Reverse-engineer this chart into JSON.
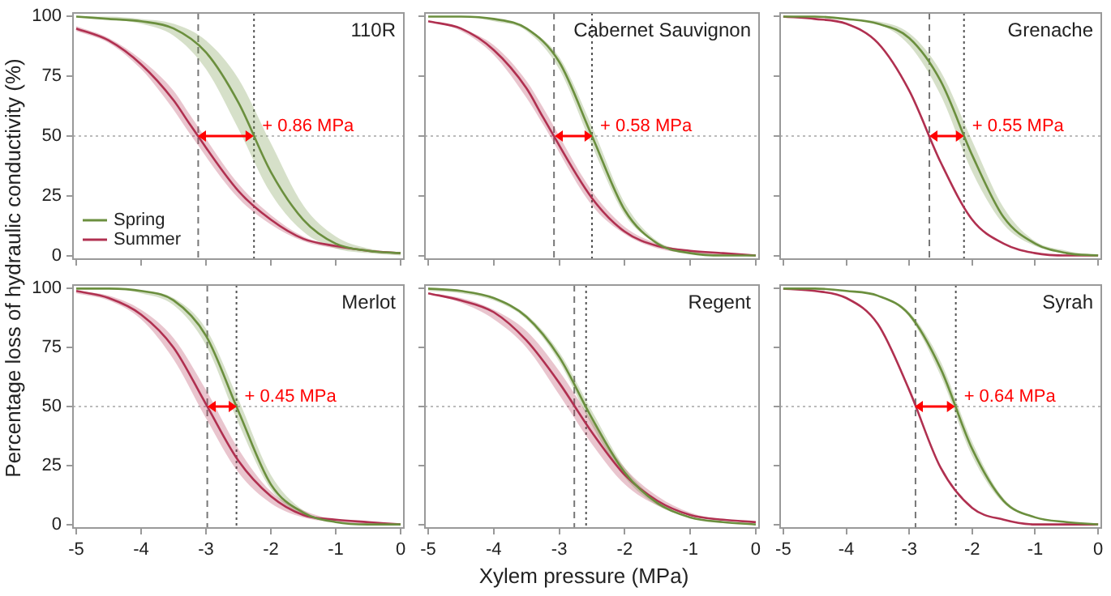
{
  "chart_data": [
    {
      "type": "line",
      "title": "110R",
      "ylabel": "Percentage loss of hydraulic conductivity (%)",
      "x": [
        -5,
        -4.5,
        -4,
        -3.5,
        -3,
        -2.5,
        -2,
        -1.5,
        -1,
        -0.5,
        0
      ],
      "xlim": [
        -5.05,
        0.05
      ],
      "xticks": [
        -5,
        -4,
        -3,
        -2,
        -1,
        0
      ],
      "ylim": [
        -1.5,
        101.5
      ],
      "yticks": [
        0,
        25,
        50,
        75,
        100
      ],
      "tick_labels": "y",
      "legend": "bottom left",
      "series": [
        {
          "name": "Spring",
          "color": "#6b8f3e",
          "values": [
            100,
            99,
            98,
            95,
            85,
            64,
            35,
            15,
            5,
            2,
            1
          ],
          "upper": [
            100,
            100,
            99,
            97,
            90,
            74,
            47,
            21,
            8,
            3,
            1
          ],
          "lower": [
            100,
            99,
            97,
            92,
            78,
            53,
            26,
            10,
            3,
            1,
            0
          ]
        },
        {
          "name": "Summer",
          "color": "#b03050",
          "x": [
            -5,
            -4.5,
            -4,
            -3.5,
            -3.25,
            -2.5,
            -2,
            -1.5,
            -1,
            -0.5,
            0
          ],
          "values": [
            95,
            90,
            80,
            65,
            55,
            27,
            15,
            7,
            4,
            2,
            1
          ],
          "upper": [
            96,
            91,
            82,
            69,
            59,
            30,
            17,
            8,
            4,
            2,
            1
          ],
          "lower": [
            94,
            89,
            78,
            61,
            51,
            24,
            13,
            6,
            3,
            2,
            1
          ]
        }
      ],
      "ref_lines": [
        {
          "axis": "x",
          "value": -3.12,
          "line_style": "dashed",
          "color": "#777777"
        },
        {
          "axis": "x",
          "value": -2.26,
          "line_style": "dotted",
          "color": "#555555"
        },
        {
          "axis": "y",
          "value": 50,
          "line_style": "dotted",
          "color": "#bbbbbb"
        }
      ],
      "annotations": [
        {
          "text": "+ 0.86 MPa",
          "x": -2.26,
          "y": 50
        }
      ]
    },
    {
      "type": "line",
      "title": "Cabernet Sauvignon",
      "x": [
        -5,
        -4.5,
        -4,
        -3.5,
        -3,
        -2.5,
        -2,
        -1.5,
        -1,
        -0.5,
        0
      ],
      "xlim": [
        -5.05,
        0.05
      ],
      "xticks": [
        -5,
        -4,
        -3,
        -2,
        -1,
        0
      ],
      "ylim": [
        -1.5,
        101.5
      ],
      "yticks": [
        0,
        25,
        50,
        75,
        100
      ],
      "tick_labels": false,
      "series": [
        {
          "color": "#6b8f3e",
          "values": [
            100,
            100,
            99,
            95,
            81,
            50,
            19,
            5,
            1,
            0,
            0
          ],
          "upper": [
            100,
            100,
            99,
            95,
            83,
            54,
            22,
            6,
            2,
            0,
            0
          ],
          "lower": [
            100,
            100,
            98,
            94,
            78,
            46,
            17,
            5,
            1,
            0,
            0
          ]
        },
        {
          "color": "#b03050",
          "x": [
            -5,
            -4.5,
            -4,
            -3.5,
            -3.25,
            -2.5,
            -2,
            -1.5,
            -1,
            -0.5,
            0
          ],
          "values": [
            98,
            95,
            86,
            70,
            58,
            24,
            10,
            4,
            2,
            1,
            0
          ],
          "upper": [
            98,
            95,
            88,
            73,
            62,
            27,
            12,
            5,
            2,
            1,
            0
          ],
          "lower": [
            98,
            94,
            84,
            66,
            55,
            21,
            9,
            3,
            1,
            0,
            0
          ]
        }
      ],
      "ref_lines": [
        {
          "axis": "x",
          "value": -3.08,
          "line_style": "dashed",
          "color": "#777777"
        },
        {
          "axis": "x",
          "value": -2.5,
          "line_style": "dotted",
          "color": "#555555"
        },
        {
          "axis": "y",
          "value": 50,
          "line_style": "dotted",
          "color": "#bbbbbb"
        }
      ],
      "annotations": [
        {
          "text": "+ 0.58 MPa",
          "x": -2.5,
          "y": 50
        }
      ]
    },
    {
      "type": "line",
      "title": "Grenache",
      "x": [
        -5,
        -4.5,
        -4,
        -3.5,
        -3,
        -2.5,
        -2,
        -1.5,
        -1,
        -0.5,
        0
      ],
      "xlim": [
        -5.05,
        0.05
      ],
      "xticks": [
        -5,
        -4,
        -3,
        -2,
        -1,
        0
      ],
      "ylim": [
        -1.5,
        101.5
      ],
      "yticks": [
        0,
        25,
        50,
        75,
        100
      ],
      "tick_labels": false,
      "series": [
        {
          "color": "#6b8f3e",
          "values": [
            100,
            100,
            99,
            97,
            91,
            73,
            42,
            16,
            5,
            1,
            0
          ],
          "upper": [
            100,
            100,
            99,
            98,
            93,
            77,
            48,
            20,
            6,
            2,
            0
          ],
          "lower": [
            100,
            100,
            99,
            97,
            88,
            67,
            35,
            13,
            4,
            1,
            0
          ]
        },
        {
          "color": "#b03050",
          "values": [
            100,
            99,
            97,
            89,
            69,
            39,
            15,
            5,
            1,
            0,
            0
          ]
        }
      ],
      "ref_lines": [
        {
          "axis": "x",
          "value": -2.68,
          "line_style": "dashed",
          "color": "#777777"
        },
        {
          "axis": "x",
          "value": -2.13,
          "line_style": "dotted",
          "color": "#555555"
        },
        {
          "axis": "y",
          "value": 50,
          "line_style": "dotted",
          "color": "#bbbbbb"
        }
      ],
      "annotations": [
        {
          "text": "+ 0.55 MPa",
          "x": -2.13,
          "y": 50
        }
      ]
    },
    {
      "type": "line",
      "title": "Merlot",
      "x": [
        -5,
        -4.5,
        -4,
        -3.5,
        -3,
        -2.5,
        -2,
        -1.5,
        -1,
        -0.5,
        0
      ],
      "xlim": [
        -5.05,
        0.05
      ],
      "xticks": [
        -5,
        -4,
        -3,
        -2,
        -1,
        0
      ],
      "ylim": [
        -1.5,
        101.5
      ],
      "yticks": [
        0,
        25,
        50,
        75,
        100
      ],
      "series": [
        {
          "color": "#6b8f3e",
          "values": [
            100,
            100,
            99,
            95,
            80,
            48,
            17,
            5,
            1,
            0,
            0
          ],
          "upper": [
            100,
            100,
            99,
            96,
            83,
            53,
            21,
            6,
            1,
            0,
            0
          ],
          "lower": [
            100,
            100,
            98,
            93,
            76,
            43,
            15,
            4,
            1,
            0,
            0
          ]
        },
        {
          "color": "#b03050",
          "values": [
            99,
            96,
            89,
            75,
            51,
            27,
            12,
            4,
            2,
            1,
            0
          ],
          "upper": [
            99,
            97,
            91,
            79,
            57,
            32,
            14,
            6,
            2,
            1,
            0
          ],
          "lower": [
            98,
            95,
            87,
            70,
            45,
            22,
            9,
            3,
            1,
            0,
            0
          ]
        }
      ],
      "ref_lines": [
        {
          "axis": "x",
          "value": -2.98,
          "line_style": "dashed",
          "color": "#777777"
        },
        {
          "axis": "x",
          "value": -2.53,
          "line_style": "dotted",
          "color": "#555555"
        },
        {
          "axis": "y",
          "value": 50,
          "line_style": "dotted",
          "color": "#bbbbbb"
        }
      ],
      "annotations": [
        {
          "text": "+ 0.45 MPa",
          "x": -2.53,
          "y": 50
        }
      ]
    },
    {
      "type": "line",
      "title": "Regent",
      "xlabel": "Xylem pressure (MPa)",
      "x": [
        -5,
        -4.5,
        -4,
        -3.5,
        -3,
        -2.5,
        -2,
        -1.5,
        -1,
        -0.5,
        0
      ],
      "xlim": [
        -5.05,
        0.05
      ],
      "xticks": [
        -5,
        -4,
        -3,
        -2,
        -1,
        0
      ],
      "ylim": [
        -1.5,
        101.5
      ],
      "yticks": [
        0,
        25,
        50,
        75,
        100
      ],
      "tick_labels": "x",
      "series": [
        {
          "color": "#6b8f3e",
          "values": [
            100,
            99,
            96,
            88,
            71,
            45,
            22,
            9,
            3,
            1,
            0
          ],
          "upper": [
            100,
            99,
            96,
            89,
            73,
            48,
            24,
            10,
            3,
            1,
            0
          ],
          "lower": [
            99,
            98,
            95,
            87,
            69,
            42,
            20,
            8,
            3,
            1,
            0
          ]
        },
        {
          "color": "#b03050",
          "values": [
            98,
            95,
            90,
            78,
            60,
            39,
            21,
            10,
            4,
            2,
            1
          ],
          "upper": [
            98,
            96,
            91,
            82,
            65,
            44,
            24,
            12,
            5,
            2,
            1
          ],
          "lower": [
            98,
            94,
            87,
            75,
            55,
            34,
            17,
            8,
            4,
            2,
            1
          ]
        }
      ],
      "ref_lines": [
        {
          "axis": "x",
          "value": -2.77,
          "line_style": "dashed",
          "color": "#777777"
        },
        {
          "axis": "x",
          "value": -2.59,
          "line_style": "dotted",
          "color": "#555555"
        },
        {
          "axis": "y",
          "value": 50,
          "line_style": "dotted",
          "color": "#bbbbbb"
        }
      ]
    },
    {
      "type": "line",
      "title": "Syrah",
      "x": [
        -5,
        -4.5,
        -4,
        -3.5,
        -3,
        -2.5,
        -2,
        -1.5,
        -1,
        -0.5,
        0
      ],
      "xlim": [
        -5.05,
        0.05
      ],
      "xticks": [
        -5,
        -4,
        -3,
        -2,
        -1,
        0
      ],
      "ylim": [
        -1.5,
        101.5
      ],
      "yticks": [
        0,
        25,
        50,
        75,
        100
      ],
      "tick_labels": "x",
      "series": [
        {
          "color": "#6b8f3e",
          "values": [
            100,
            100,
            99,
            97,
            89,
            66,
            32,
            10,
            3,
            1,
            0
          ],
          "upper": [
            100,
            100,
            99,
            97,
            90,
            69,
            35,
            11,
            3,
            1,
            0
          ],
          "lower": [
            100,
            100,
            99,
            97,
            88,
            63,
            29,
            9,
            3,
            1,
            0
          ]
        },
        {
          "color": "#b03050",
          "values": [
            100,
            99,
            96,
            85,
            57,
            24,
            7,
            2,
            0,
            0,
            0
          ]
        }
      ],
      "ref_lines": [
        {
          "axis": "x",
          "value": -2.9,
          "line_style": "dashed",
          "color": "#777777"
        },
        {
          "axis": "x",
          "value": -2.26,
          "line_style": "dotted",
          "color": "#555555"
        },
        {
          "axis": "y",
          "value": 50,
          "line_style": "dotted",
          "color": "#bbbbbb"
        }
      ],
      "annotations": [
        {
          "text": "+ 0.64 MPa",
          "x": -2.26,
          "y": 50
        }
      ]
    }
  ]
}
